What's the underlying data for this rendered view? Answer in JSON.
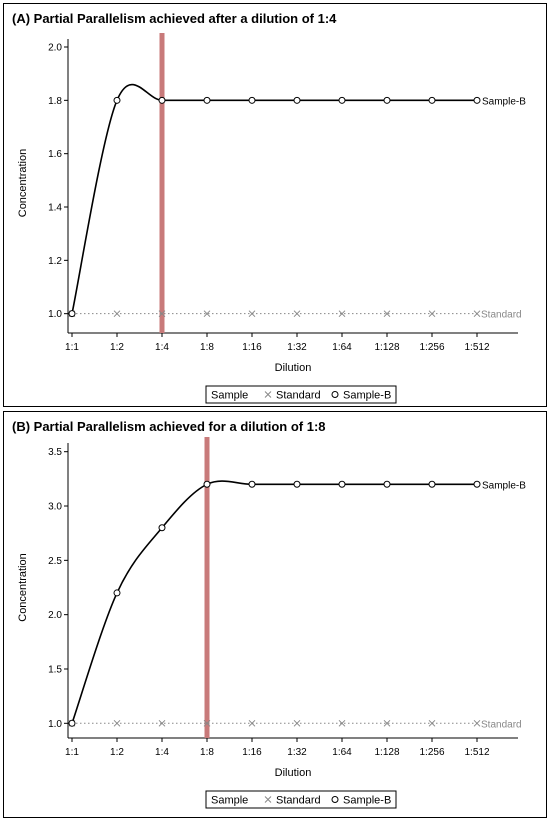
{
  "page": {
    "background": "#ffffff"
  },
  "chart_data": [
    {
      "type": "line",
      "title": "(A) Partial Parallelism achieved after a dilution of 1:4",
      "xlabel": "Dilution",
      "ylabel": "Concentration",
      "categories": [
        "1:1",
        "1:2",
        "1:4",
        "1:8",
        "1:16",
        "1:32",
        "1:64",
        "1:128",
        "1:256",
        "1:512"
      ],
      "ylim": [
        0.95,
        2.03
      ],
      "yticks": [
        1.0,
        1.2,
        1.4,
        1.6,
        1.8,
        2.0
      ],
      "ytick_labels": [
        "1.0",
        "1.2",
        "1.4",
        "1.6",
        "1.8",
        "2.0"
      ],
      "series": [
        {
          "name": "Standard",
          "values": [
            1,
            1,
            1,
            1,
            1,
            1,
            1,
            1,
            1,
            1
          ],
          "marker": "x",
          "line": "dotted",
          "color": "#888888"
        },
        {
          "name": "Sample-B",
          "values": [
            1.0,
            1.8,
            1.8,
            1.8,
            1.8,
            1.8,
            1.8,
            1.8,
            1.8,
            1.8
          ],
          "marker": "circle",
          "line": "solid",
          "color": "#000000"
        }
      ],
      "reference_line": {
        "x": "1:4",
        "color": "#c87a7a"
      },
      "legend": {
        "title": "Sample",
        "placement": "bottom"
      },
      "grid": false
    },
    {
      "type": "line",
      "title": "(B) Partial Parallelism achieved for a dilution of 1:8",
      "xlabel": "Dilution",
      "ylabel": "Concentration",
      "categories": [
        "1:1",
        "1:2",
        "1:4",
        "1:8",
        "1:16",
        "1:32",
        "1:64",
        "1:128",
        "1:256",
        "1:512"
      ],
      "ylim": [
        0.92,
        3.58
      ],
      "yticks": [
        1.0,
        1.5,
        2.0,
        2.5,
        3.0,
        3.5
      ],
      "ytick_labels": [
        "1.0",
        "1.5",
        "2.0",
        "2.5",
        "3.0",
        "3.5"
      ],
      "series": [
        {
          "name": "Standard",
          "values": [
            1,
            1,
            1,
            1,
            1,
            1,
            1,
            1,
            1,
            1
          ],
          "marker": "x",
          "line": "dotted",
          "color": "#888888"
        },
        {
          "name": "Sample-B",
          "values": [
            1.0,
            2.2,
            2.8,
            3.2,
            3.2,
            3.2,
            3.2,
            3.2,
            3.2,
            3.2
          ],
          "marker": "circle",
          "line": "solid",
          "color": "#000000"
        }
      ],
      "reference_line": {
        "x": "1:8",
        "color": "#c87a7a"
      },
      "legend": {
        "title": "Sample",
        "placement": "bottom"
      },
      "grid": false
    }
  ]
}
